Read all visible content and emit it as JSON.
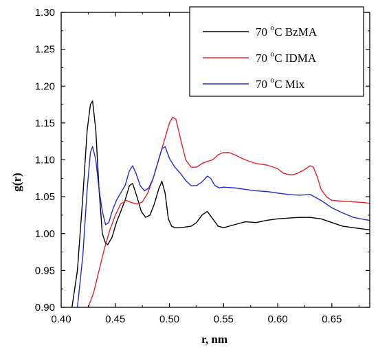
{
  "chart_data": {
    "type": "line",
    "xlabel": "r, nm",
    "ylabel": "g(r)",
    "xlim": [
      0.4,
      0.685
    ],
    "ylim": [
      0.9,
      1.3
    ],
    "xticks": [
      0.4,
      0.45,
      0.5,
      0.55,
      0.6,
      0.65
    ],
    "yticks": [
      0.9,
      0.95,
      1.0,
      1.05,
      1.1,
      1.15,
      1.2,
      1.25,
      1.3
    ],
    "legend_position": "top-right",
    "grid": false,
    "series": [
      {
        "name": "70 °C BzMA",
        "legend_prefix": "70 ",
        "legend_sup": "o",
        "legend_suffix": "C BzMA",
        "color": "#000000",
        "x": [
          0.41,
          0.415,
          0.42,
          0.424,
          0.427,
          0.429,
          0.432,
          0.435,
          0.438,
          0.441,
          0.443,
          0.447,
          0.451,
          0.455,
          0.459,
          0.463,
          0.466,
          0.47,
          0.474,
          0.478,
          0.482,
          0.486,
          0.49,
          0.493,
          0.496,
          0.499,
          0.502,
          0.505,
          0.51,
          0.52,
          0.525,
          0.53,
          0.535,
          0.539,
          0.545,
          0.55,
          0.56,
          0.57,
          0.58,
          0.59,
          0.6,
          0.61,
          0.62,
          0.63,
          0.64,
          0.65,
          0.66,
          0.67,
          0.68,
          0.685
        ],
        "y": [
          0.9,
          0.95,
          1.05,
          1.14,
          1.175,
          1.18,
          1.14,
          1.06,
          1.0,
          0.987,
          0.985,
          0.995,
          1.015,
          1.03,
          1.045,
          1.065,
          1.068,
          1.05,
          1.03,
          1.022,
          1.025,
          1.04,
          1.06,
          1.071,
          1.055,
          1.02,
          1.01,
          1.008,
          1.008,
          1.01,
          1.015,
          1.025,
          1.03,
          1.022,
          1.01,
          1.008,
          1.012,
          1.016,
          1.015,
          1.018,
          1.02,
          1.021,
          1.022,
          1.022,
          1.02,
          1.015,
          1.01,
          1.008,
          1.006,
          1.005
        ]
      },
      {
        "name": "70 °C IDMA",
        "legend_prefix": "70 ",
        "legend_sup": "o",
        "legend_suffix": "C IDMA",
        "color": "#e8202a",
        "x": [
          0.425,
          0.43,
          0.435,
          0.44,
          0.445,
          0.45,
          0.455,
          0.46,
          0.465,
          0.47,
          0.475,
          0.48,
          0.485,
          0.49,
          0.495,
          0.5,
          0.503,
          0.506,
          0.51,
          0.515,
          0.52,
          0.525,
          0.53,
          0.535,
          0.54,
          0.545,
          0.55,
          0.555,
          0.56,
          0.57,
          0.58,
          0.59,
          0.6,
          0.605,
          0.61,
          0.615,
          0.62,
          0.625,
          0.63,
          0.633,
          0.637,
          0.64,
          0.645,
          0.65,
          0.66,
          0.67,
          0.68,
          0.685
        ],
        "y": [
          0.9,
          0.92,
          0.95,
          0.98,
          1.005,
          1.025,
          1.04,
          1.045,
          1.042,
          1.04,
          1.043,
          1.055,
          1.075,
          1.1,
          1.125,
          1.15,
          1.158,
          1.155,
          1.13,
          1.1,
          1.09,
          1.09,
          1.095,
          1.098,
          1.1,
          1.107,
          1.11,
          1.11,
          1.107,
          1.1,
          1.095,
          1.093,
          1.088,
          1.082,
          1.08,
          1.08,
          1.083,
          1.087,
          1.092,
          1.09,
          1.075,
          1.06,
          1.05,
          1.045,
          1.044,
          1.043,
          1.042,
          1.041
        ]
      },
      {
        "name": "70 °C Mix",
        "legend_prefix": "70 ",
        "legend_sup": "o",
        "legend_suffix": "C Mix",
        "color": "#1f2bd6",
        "x": [
          0.415,
          0.42,
          0.424,
          0.427,
          0.429,
          0.432,
          0.435,
          0.438,
          0.441,
          0.444,
          0.447,
          0.451,
          0.455,
          0.459,
          0.463,
          0.466,
          0.469,
          0.473,
          0.477,
          0.481,
          0.485,
          0.489,
          0.493,
          0.496,
          0.5,
          0.505,
          0.51,
          0.515,
          0.52,
          0.525,
          0.53,
          0.535,
          0.538,
          0.542,
          0.546,
          0.55,
          0.56,
          0.57,
          0.58,
          0.59,
          0.6,
          0.61,
          0.62,
          0.63,
          0.64,
          0.65,
          0.66,
          0.67,
          0.68,
          0.685
        ],
        "y": [
          0.9,
          0.97,
          1.06,
          1.11,
          1.118,
          1.1,
          1.06,
          1.03,
          1.012,
          1.015,
          1.03,
          1.045,
          1.055,
          1.065,
          1.085,
          1.092,
          1.082,
          1.065,
          1.058,
          1.062,
          1.075,
          1.095,
          1.115,
          1.118,
          1.102,
          1.09,
          1.082,
          1.072,
          1.065,
          1.065,
          1.07,
          1.078,
          1.075,
          1.065,
          1.062,
          1.063,
          1.062,
          1.06,
          1.058,
          1.057,
          1.055,
          1.053,
          1.052,
          1.053,
          1.045,
          1.035,
          1.028,
          1.022,
          1.019,
          1.018
        ]
      }
    ]
  }
}
